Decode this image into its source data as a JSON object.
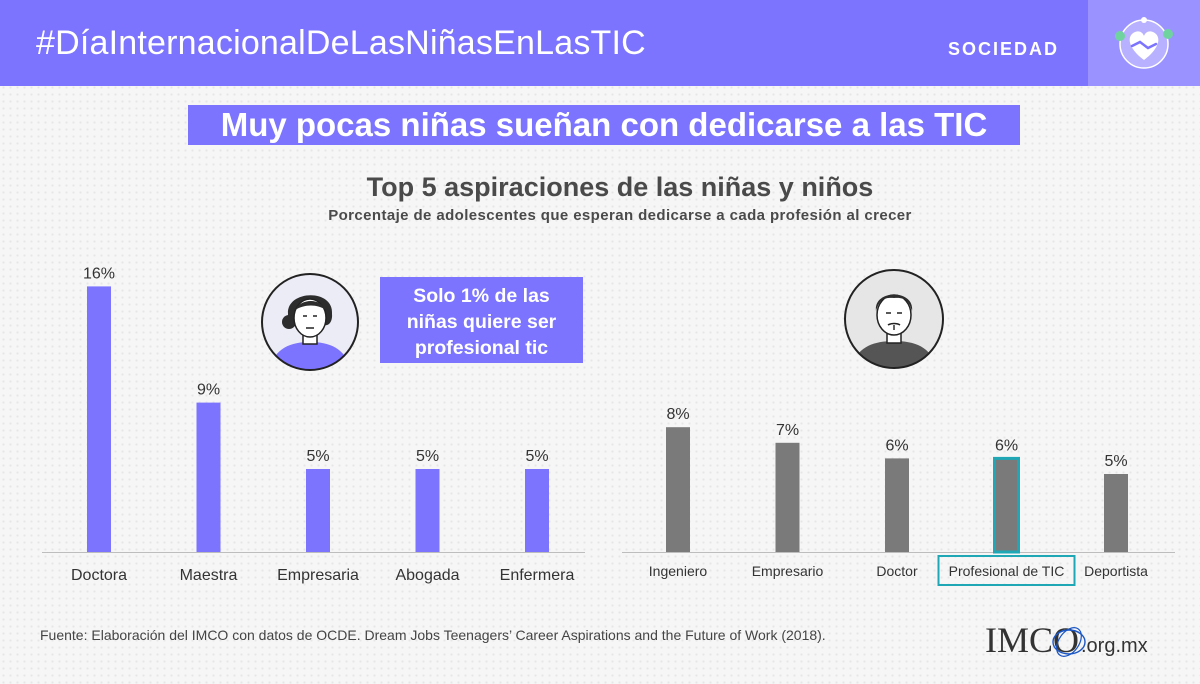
{
  "header": {
    "hashtag": "#DíaInternacionalDeLasNiñasEnLasTIC",
    "section": "SOCIEDAD",
    "section_icon": "handshake-heart-icon",
    "colors": {
      "accent": "#7c74ff",
      "icon_bg": "#9a93ff"
    }
  },
  "headline": "Muy pocas niñas sueñan con dedicarse a las TIC",
  "callout": {
    "line1": "Solo 1% de las",
    "line2": "niñas quiere ser",
    "line3": "profesional tic"
  },
  "chart_data": [
    {
      "type": "bar",
      "title": "Top 5 aspiraciones de las niñas y niños",
      "subtitle": "Porcentaje de adolescentes que esperan dedicarse a cada profesión al crecer",
      "categories": [
        "Doctora",
        "Maestra",
        "Empresaria",
        "Abogada",
        "Enfermera"
      ],
      "values": [
        16,
        9,
        5,
        5,
        5
      ],
      "labels": [
        "16%",
        "9%",
        "5%",
        "5%",
        "5%"
      ],
      "unit": "%",
      "color": "#7c74ff",
      "ylim": [
        0,
        16
      ],
      "grid": false
    },
    {
      "type": "bar",
      "categories": [
        "Ingeniero",
        "Empresario",
        "Doctor",
        "Profesional de TIC",
        "Deportista"
      ],
      "values": [
        8,
        7,
        6,
        6,
        5
      ],
      "labels": [
        "8%",
        "7%",
        "6%",
        "6%",
        "5%"
      ],
      "unit": "%",
      "color": "#7a7a7a",
      "highlight": {
        "category": "Profesional de TIC",
        "color": "#1fa7b5"
      },
      "ylim": [
        0,
        16
      ],
      "grid": false
    }
  ],
  "footer": {
    "source": "Fuente: Elaboración del IMCO con datos de OCDE. Dream Jobs Teenagers’ Career Aspirations and the Future of Work (2018).",
    "logo_text": "IMCO",
    "logo_domain": ".org.mx"
  }
}
